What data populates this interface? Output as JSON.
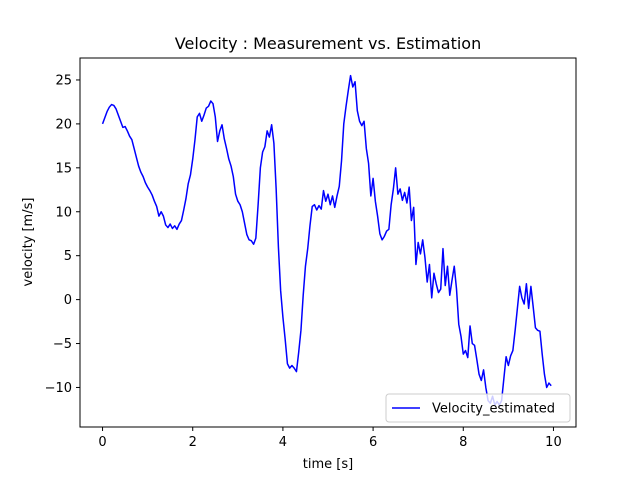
{
  "chart_data": {
    "type": "line",
    "title": "Velocity : Measurement vs. Estimation",
    "xlabel": "time [s]",
    "ylabel": "velocity [m/s]",
    "xlim": [
      -0.5,
      10.5
    ],
    "ylim": [
      -14.5,
      27.5
    ],
    "xticks": [
      0,
      2,
      4,
      6,
      8,
      10
    ],
    "yticks": [
      -10,
      -5,
      0,
      5,
      10,
      15,
      20,
      25
    ],
    "grid": false,
    "legend_position": "lower-right",
    "series": [
      {
        "name": "Velocity_estimated",
        "color": "#0000ff",
        "points": [
          [
            0.0,
            20.0
          ],
          [
            0.05,
            20.7
          ],
          [
            0.1,
            21.4
          ],
          [
            0.15,
            21.9
          ],
          [
            0.2,
            22.2
          ],
          [
            0.25,
            22.1
          ],
          [
            0.3,
            21.7
          ],
          [
            0.35,
            21.0
          ],
          [
            0.4,
            20.3
          ],
          [
            0.45,
            19.6
          ],
          [
            0.5,
            19.7
          ],
          [
            0.55,
            19.2
          ],
          [
            0.6,
            18.6
          ],
          [
            0.65,
            18.2
          ],
          [
            0.7,
            17.2
          ],
          [
            0.75,
            16.2
          ],
          [
            0.8,
            15.2
          ],
          [
            0.85,
            14.5
          ],
          [
            0.9,
            14.0
          ],
          [
            0.95,
            13.3
          ],
          [
            1.0,
            12.8
          ],
          [
            1.05,
            12.4
          ],
          [
            1.1,
            11.9
          ],
          [
            1.15,
            11.2
          ],
          [
            1.2,
            10.6
          ],
          [
            1.25,
            9.5
          ],
          [
            1.3,
            10.0
          ],
          [
            1.35,
            9.5
          ],
          [
            1.4,
            8.5
          ],
          [
            1.45,
            8.2
          ],
          [
            1.5,
            8.6
          ],
          [
            1.55,
            8.1
          ],
          [
            1.6,
            8.4
          ],
          [
            1.65,
            8.0
          ],
          [
            1.7,
            8.6
          ],
          [
            1.75,
            9.0
          ],
          [
            1.8,
            10.2
          ],
          [
            1.85,
            11.5
          ],
          [
            1.9,
            13.2
          ],
          [
            1.95,
            14.2
          ],
          [
            2.0,
            16.0
          ],
          [
            2.05,
            18.2
          ],
          [
            2.1,
            20.8
          ],
          [
            2.15,
            21.2
          ],
          [
            2.2,
            20.3
          ],
          [
            2.25,
            21.0
          ],
          [
            2.3,
            21.8
          ],
          [
            2.35,
            22.0
          ],
          [
            2.4,
            22.6
          ],
          [
            2.45,
            22.3
          ],
          [
            2.5,
            20.8
          ],
          [
            2.55,
            18.0
          ],
          [
            2.6,
            19.2
          ],
          [
            2.65,
            19.9
          ],
          [
            2.7,
            18.3
          ],
          [
            2.75,
            17.2
          ],
          [
            2.8,
            16.0
          ],
          [
            2.85,
            15.2
          ],
          [
            2.9,
            14.0
          ],
          [
            2.95,
            12.0
          ],
          [
            3.0,
            11.2
          ],
          [
            3.05,
            10.8
          ],
          [
            3.1,
            10.0
          ],
          [
            3.15,
            8.7
          ],
          [
            3.2,
            7.4
          ],
          [
            3.25,
            6.8
          ],
          [
            3.3,
            6.7
          ],
          [
            3.35,
            6.3
          ],
          [
            3.4,
            7.0
          ],
          [
            3.45,
            10.8
          ],
          [
            3.5,
            15.0
          ],
          [
            3.55,
            16.8
          ],
          [
            3.6,
            17.4
          ],
          [
            3.65,
            19.2
          ],
          [
            3.7,
            18.5
          ],
          [
            3.75,
            19.9
          ],
          [
            3.8,
            17.8
          ],
          [
            3.85,
            12.6
          ],
          [
            3.9,
            6.0
          ],
          [
            3.95,
            1.0
          ],
          [
            4.0,
            -2.0
          ],
          [
            4.05,
            -4.5
          ],
          [
            4.1,
            -7.3
          ],
          [
            4.15,
            -7.8
          ],
          [
            4.2,
            -7.5
          ],
          [
            4.25,
            -7.8
          ],
          [
            4.3,
            -8.2
          ],
          [
            4.35,
            -6.0
          ],
          [
            4.4,
            -3.5
          ],
          [
            4.45,
            0.5
          ],
          [
            4.5,
            3.8
          ],
          [
            4.55,
            5.8
          ],
          [
            4.6,
            8.4
          ],
          [
            4.65,
            10.6
          ],
          [
            4.7,
            10.8
          ],
          [
            4.75,
            10.2
          ],
          [
            4.8,
            10.7
          ],
          [
            4.85,
            10.3
          ],
          [
            4.9,
            12.4
          ],
          [
            4.95,
            11.2
          ],
          [
            5.0,
            12.0
          ],
          [
            5.05,
            10.8
          ],
          [
            5.1,
            11.8
          ],
          [
            5.15,
            10.5
          ],
          [
            5.2,
            11.8
          ],
          [
            5.25,
            12.9
          ],
          [
            5.3,
            15.8
          ],
          [
            5.35,
            20.0
          ],
          [
            5.4,
            22.0
          ],
          [
            5.45,
            23.8
          ],
          [
            5.5,
            25.5
          ],
          [
            5.55,
            24.2
          ],
          [
            5.6,
            24.8
          ],
          [
            5.65,
            21.5
          ],
          [
            5.7,
            20.3
          ],
          [
            5.75,
            19.8
          ],
          [
            5.8,
            20.3
          ],
          [
            5.85,
            17.2
          ],
          [
            5.9,
            15.5
          ],
          [
            5.95,
            11.8
          ],
          [
            6.0,
            13.8
          ],
          [
            6.05,
            11.2
          ],
          [
            6.1,
            9.5
          ],
          [
            6.15,
            7.5
          ],
          [
            6.2,
            6.8
          ],
          [
            6.25,
            7.2
          ],
          [
            6.3,
            7.8
          ],
          [
            6.35,
            8.0
          ],
          [
            6.4,
            10.8
          ],
          [
            6.45,
            12.6
          ],
          [
            6.5,
            15.0
          ],
          [
            6.55,
            12.0
          ],
          [
            6.6,
            12.6
          ],
          [
            6.65,
            11.3
          ],
          [
            6.7,
            12.2
          ],
          [
            6.75,
            11.0
          ],
          [
            6.8,
            12.8
          ],
          [
            6.85,
            9.0
          ],
          [
            6.9,
            10.5
          ],
          [
            6.95,
            4.0
          ],
          [
            7.0,
            6.5
          ],
          [
            7.05,
            5.2
          ],
          [
            7.1,
            6.8
          ],
          [
            7.15,
            4.8
          ],
          [
            7.2,
            2.0
          ],
          [
            7.25,
            4.0
          ],
          [
            7.3,
            0.2
          ],
          [
            7.35,
            3.0
          ],
          [
            7.4,
            1.8
          ],
          [
            7.45,
            0.8
          ],
          [
            7.5,
            1.2
          ],
          [
            7.55,
            5.8
          ],
          [
            7.6,
            1.6
          ],
          [
            7.65,
            3.8
          ],
          [
            7.7,
            0.5
          ],
          [
            7.75,
            2.2
          ],
          [
            7.8,
            3.8
          ],
          [
            7.85,
            1.2
          ],
          [
            7.9,
            -2.8
          ],
          [
            7.95,
            -4.2
          ],
          [
            8.0,
            -6.2
          ],
          [
            8.05,
            -5.8
          ],
          [
            8.1,
            -6.6
          ],
          [
            8.15,
            -3.0
          ],
          [
            8.2,
            -5.0
          ],
          [
            8.25,
            -5.2
          ],
          [
            8.3,
            -6.8
          ],
          [
            8.35,
            -8.5
          ],
          [
            8.4,
            -9.2
          ],
          [
            8.45,
            -8.0
          ],
          [
            8.5,
            -10.0
          ],
          [
            8.55,
            -11.5
          ],
          [
            8.6,
            -11.8
          ],
          [
            8.65,
            -11.0
          ],
          [
            8.7,
            -12.0
          ],
          [
            8.75,
            -11.6
          ],
          [
            8.8,
            -12.0
          ],
          [
            8.85,
            -11.5
          ],
          [
            8.9,
            -9.0
          ],
          [
            8.95,
            -6.5
          ],
          [
            9.0,
            -7.5
          ],
          [
            9.05,
            -6.4
          ],
          [
            9.1,
            -5.8
          ],
          [
            9.15,
            -3.5
          ],
          [
            9.2,
            -1.0
          ],
          [
            9.25,
            1.5
          ],
          [
            9.3,
            0.2
          ],
          [
            9.35,
            -0.5
          ],
          [
            9.4,
            1.8
          ],
          [
            9.45,
            -1.0
          ],
          [
            9.5,
            1.5
          ],
          [
            9.55,
            -0.8
          ],
          [
            9.6,
            -3.2
          ],
          [
            9.65,
            -3.5
          ],
          [
            9.7,
            -3.6
          ],
          [
            9.75,
            -6.2
          ],
          [
            9.8,
            -8.5
          ],
          [
            9.85,
            -10.0
          ],
          [
            9.9,
            -9.5
          ],
          [
            9.95,
            -9.8
          ]
        ]
      }
    ]
  }
}
